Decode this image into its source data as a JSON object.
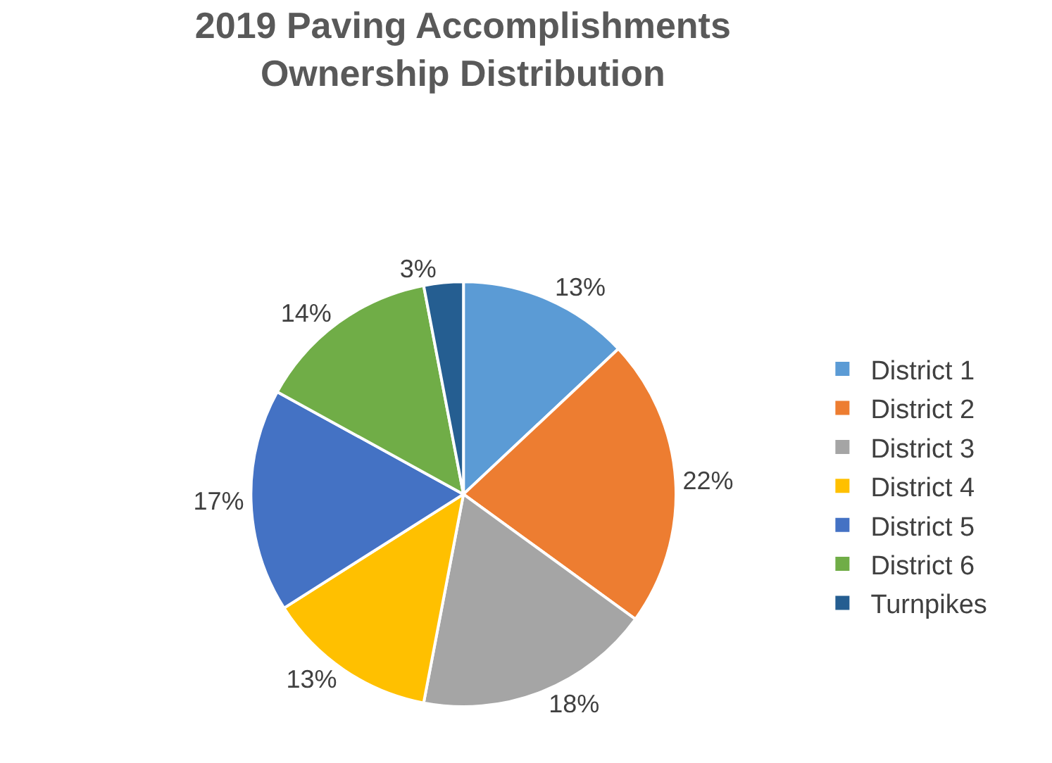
{
  "chart_data": {
    "type": "pie",
    "title": "2019 Paving Accomplishments\nOwnership Distribution",
    "categories": [
      "District 1",
      "District 2",
      "District 3",
      "District 4",
      "District 5",
      "District 6",
      "Turnpikes"
    ],
    "values": [
      13,
      22,
      18,
      13,
      17,
      14,
      3
    ],
    "value_labels": [
      "13%",
      "22%",
      "18%",
      "13%",
      "17%",
      "14%",
      "3%"
    ],
    "colors": [
      "#5b9bd5",
      "#ed7d31",
      "#a5a5a5",
      "#ffc000",
      "#4472c4",
      "#70ad47",
      "#255e91"
    ],
    "legend": "right"
  }
}
